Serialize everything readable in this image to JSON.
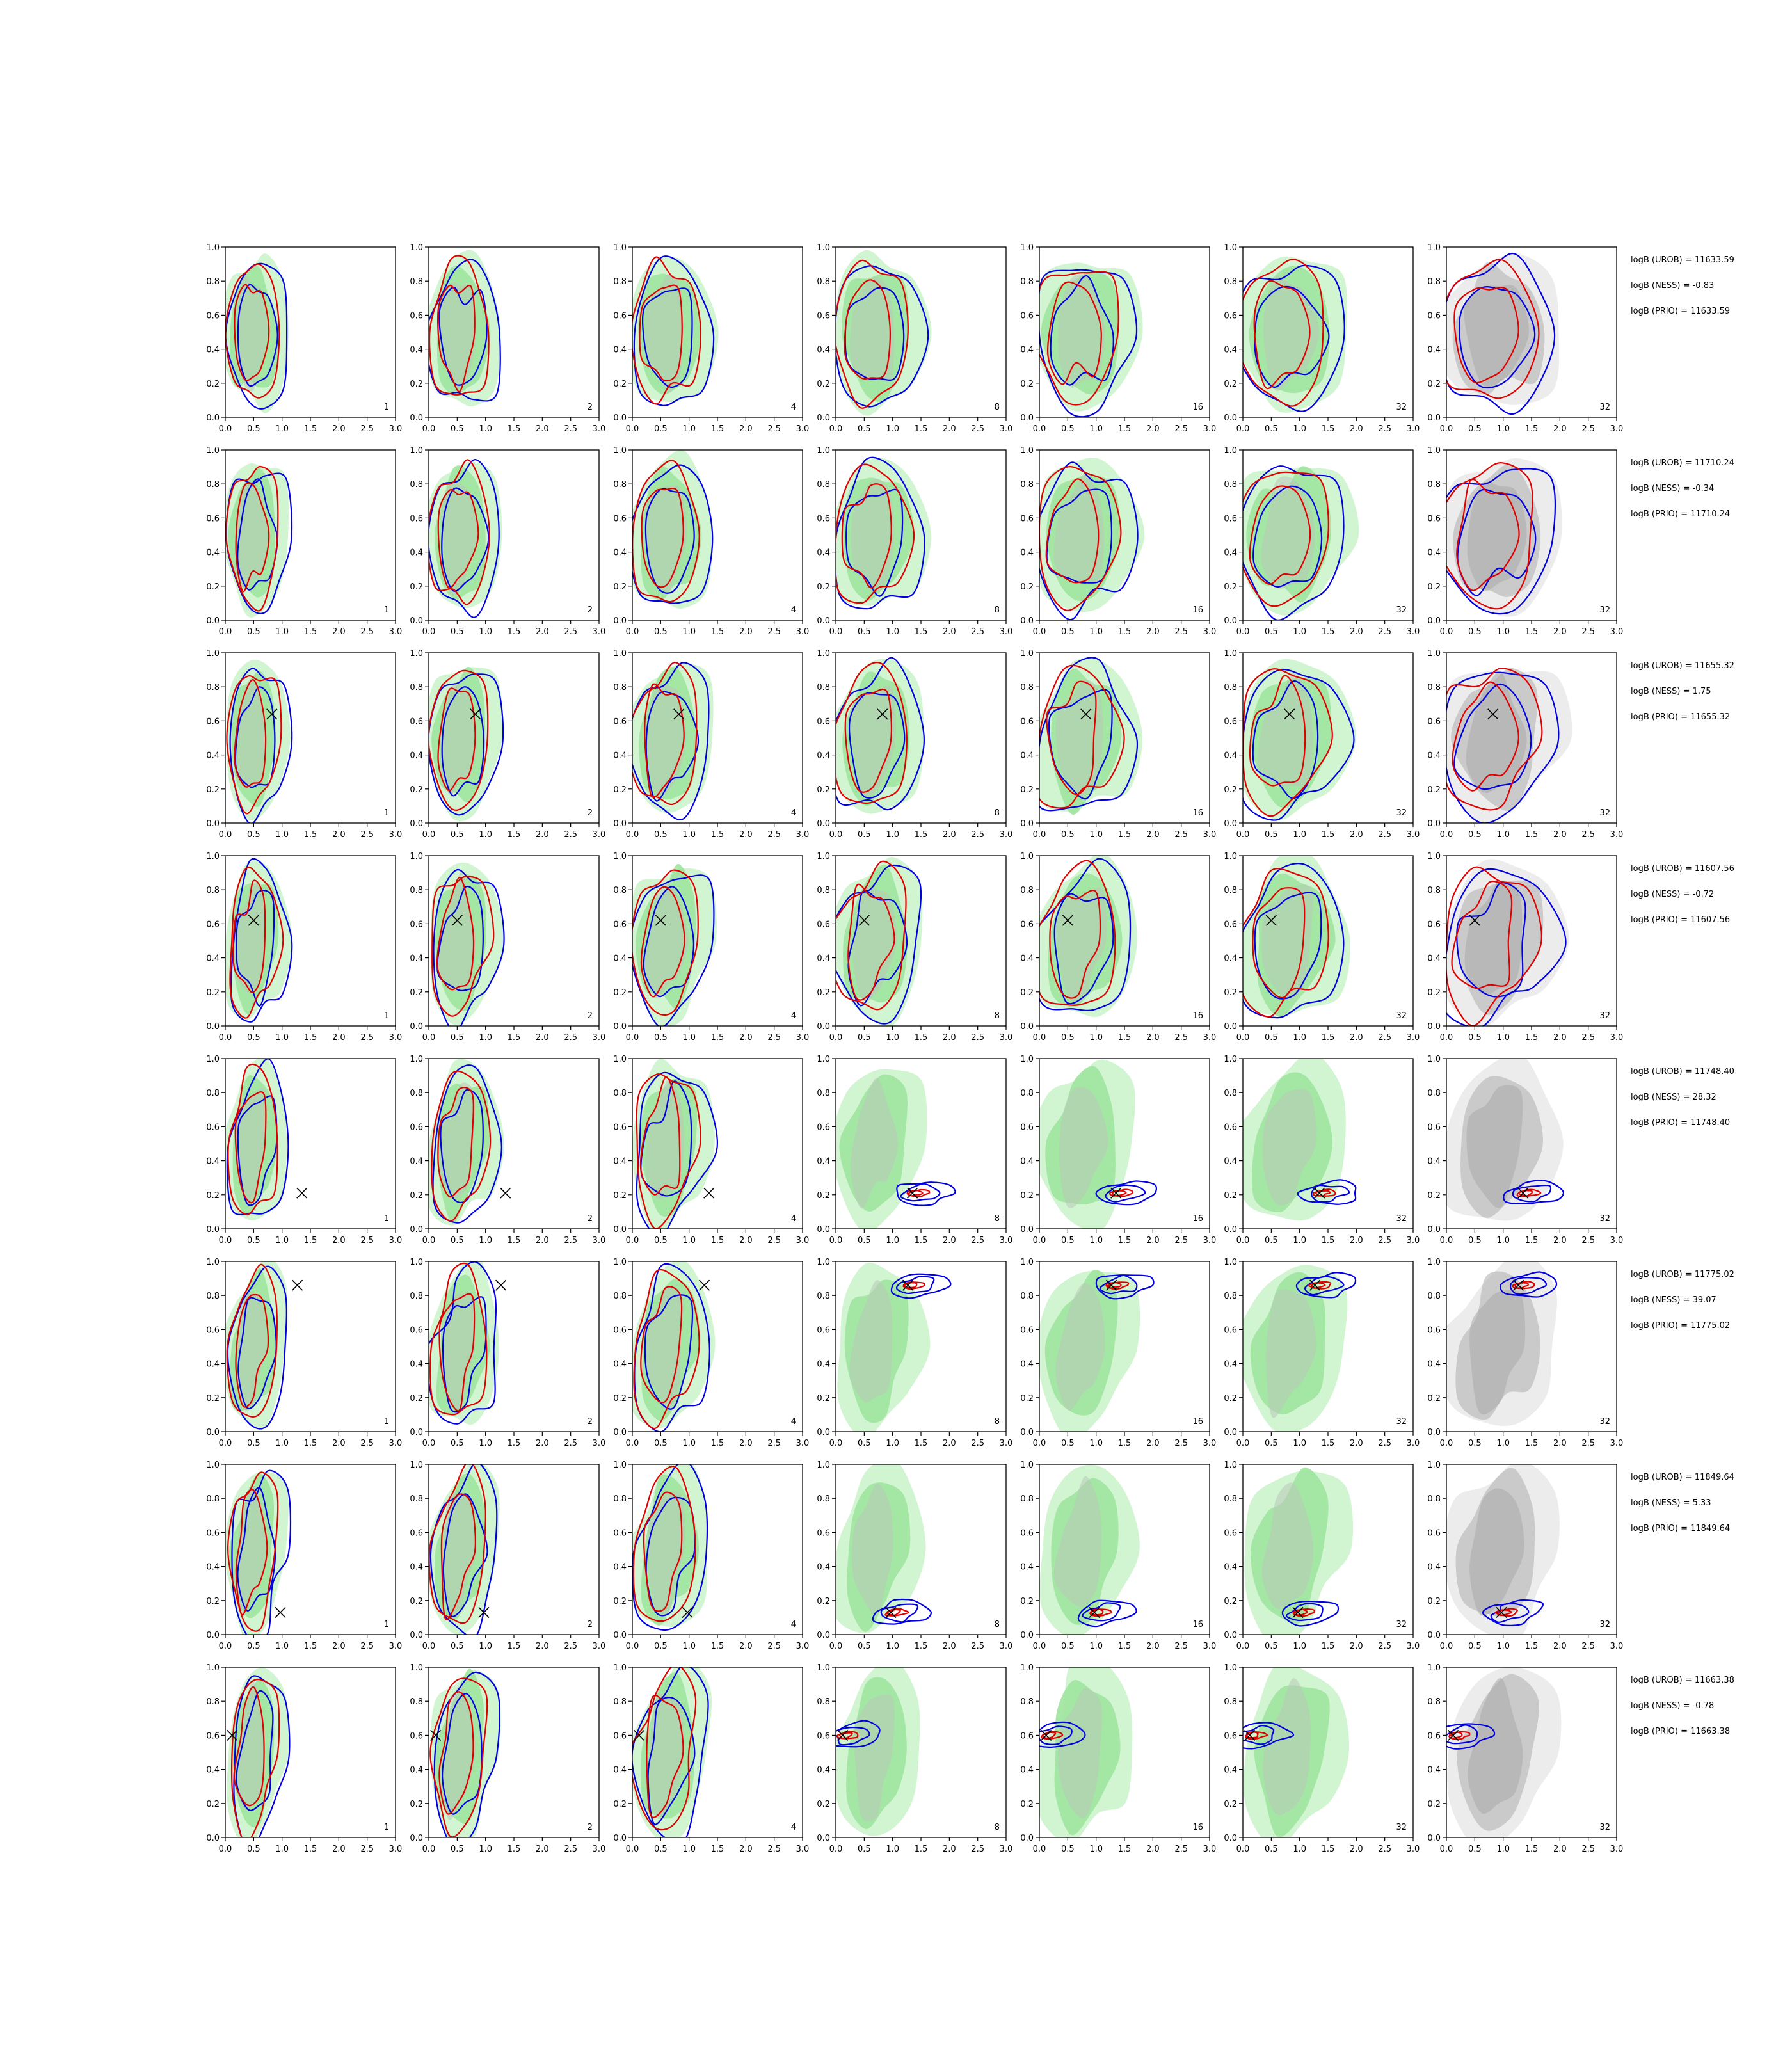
{
  "figure": {
    "rows": 8,
    "cols": 7
  },
  "colors": {
    "green_fill": "#9ee49e",
    "green_fill_light": "#c9f2c9",
    "gray_fill": "#b4b4b4",
    "gray_fill_light": "#dcdcdc",
    "blue": "#0000e0",
    "red": "#e00000",
    "marker": "#000000"
  },
  "chart_data": {
    "type": "contour",
    "xlim": [
      0.0,
      3.0
    ],
    "ylim": [
      0.0,
      1.0
    ],
    "x_ticks": [
      "0.0",
      "0.5",
      "1.0",
      "1.5",
      "2.0",
      "2.5",
      "3.0"
    ],
    "y_ticks": [
      "0.0",
      "0.2",
      "0.4",
      "0.6",
      "0.8",
      "1.0"
    ],
    "panel_labels": [
      "1",
      "2",
      "4",
      "8",
      "16",
      "32",
      "32"
    ],
    "rows": [
      {
        "logB_UROB": "logB (UROB) = 11633.59",
        "logB_NESS": "logB (NESS) = -0.83",
        "logB_PRIO": "logB (PRIO) = 11633.59",
        "truth": null
      },
      {
        "logB_UROB": "logB (UROB) = 11710.24",
        "logB_NESS": "logB (NESS) = -0.34",
        "logB_PRIO": "logB (PRIO) = 11710.24",
        "truth": null
      },
      {
        "logB_UROB": "logB (UROB) = 11655.32",
        "logB_NESS": "logB (NESS) = 1.75",
        "logB_PRIO": "logB (PRIO) = 11655.32",
        "truth": [
          0.82,
          0.64
        ]
      },
      {
        "logB_UROB": "logB (UROB) = 11607.56",
        "logB_NESS": "logB (NESS) = -0.72",
        "logB_PRIO": "logB (PRIO) = 11607.56",
        "truth": [
          0.5,
          0.62
        ]
      },
      {
        "logB_UROB": "logB (UROB) = 11748.40",
        "logB_NESS": "logB (NESS) = 28.32",
        "logB_PRIO": "logB (PRIO) = 11748.40",
        "truth": [
          1.35,
          0.21
        ]
      },
      {
        "logB_UROB": "logB (UROB) = 11775.02",
        "logB_NESS": "logB (NESS) = 39.07",
        "logB_PRIO": "logB (PRIO) = 11775.02",
        "truth": [
          1.27,
          0.86
        ]
      },
      {
        "logB_UROB": "logB (UROB) = 11849.64",
        "logB_NESS": "logB (NESS) = 5.33",
        "logB_PRIO": "logB (PRIO) = 11849.64",
        "truth": [
          0.97,
          0.13
        ]
      },
      {
        "logB_UROB": "logB (UROB) = 11663.38",
        "logB_NESS": "logB (NESS) = -0.78",
        "logB_PRIO": "logB (PRIO) = 11663.38",
        "truth": [
          0.12,
          0.6
        ]
      }
    ]
  }
}
